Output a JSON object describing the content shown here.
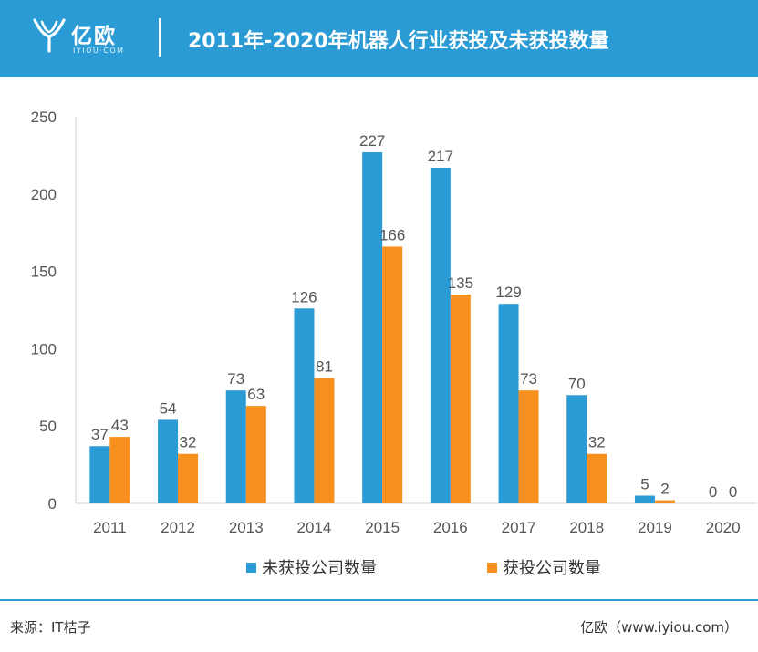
{
  "header": {
    "brand_name": "亿欧",
    "brand_sub": "IYIOU·COM",
    "title": "2011年-2020年机器人行业获投及未获投数量",
    "bg_color": "#2a9bd5",
    "logo_icon": "yiou-logo-icon"
  },
  "chart_data": {
    "type": "bar",
    "categories": [
      "2011",
      "2012",
      "2013",
      "2014",
      "2015",
      "2016",
      "2017",
      "2018",
      "2019",
      "2020"
    ],
    "series": [
      {
        "name": "未获投公司数量",
        "color": "#2a9bd5",
        "values": [
          37,
          54,
          73,
          126,
          227,
          217,
          129,
          70,
          5,
          0
        ]
      },
      {
        "name": "获投公司数量",
        "color": "#f7901e",
        "values": [
          43,
          32,
          63,
          81,
          166,
          135,
          73,
          32,
          2,
          0
        ]
      }
    ],
    "ylim": [
      0,
      250
    ],
    "yticks": [
      0,
      50,
      100,
      150,
      200,
      250
    ],
    "grid": false,
    "legend": "bottom"
  },
  "footer": {
    "source": "来源：IT桔子",
    "credit": "亿欧（www.iyiou.com）"
  }
}
